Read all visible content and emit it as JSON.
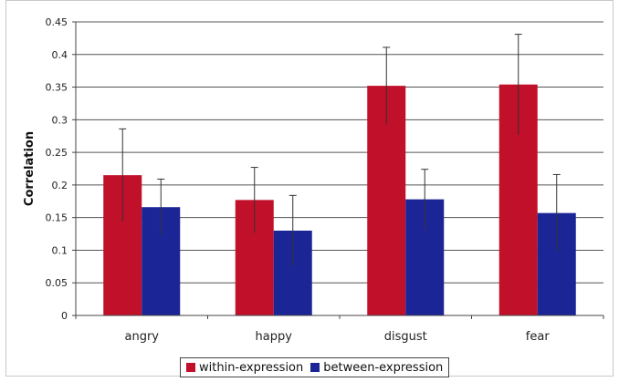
{
  "chart_data": {
    "type": "bar",
    "title": "",
    "xlabel": "",
    "ylabel": "Correlation",
    "ylim": [
      0,
      0.45
    ],
    "yticks": [
      "0",
      "0.05",
      "0.1",
      "0.15",
      "0.2",
      "0.25",
      "0.3",
      "0.35",
      "0.4",
      "0.45"
    ],
    "grid": true,
    "legend_position": "bottom",
    "categories": [
      "angry",
      "happy",
      "disgust",
      "fear"
    ],
    "series": [
      {
        "name": "within-expression",
        "color": "#c0102a",
        "values": [
          0.215,
          0.177,
          0.352,
          0.354
        ],
        "error": [
          0.071,
          0.05,
          0.059,
          0.077
        ]
      },
      {
        "name": "between-expression",
        "color": "#1c2596",
        "values": [
          0.166,
          0.13,
          0.178,
          0.157
        ],
        "error": [
          0.043,
          0.054,
          0.046,
          0.059
        ]
      }
    ]
  }
}
